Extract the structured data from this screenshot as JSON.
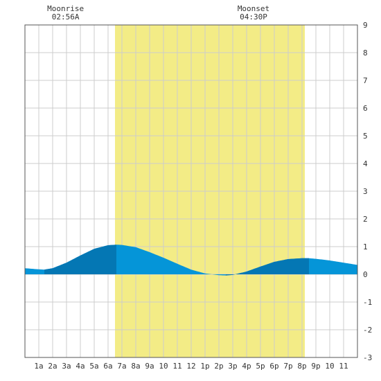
{
  "chart_data": {
    "type": "area",
    "title": "",
    "xlabel": "",
    "ylabel": "",
    "x_range_hours": [
      0,
      24
    ],
    "ylim": [
      -3,
      9
    ],
    "y_ticks": [
      -3,
      -2,
      -1,
      0,
      1,
      2,
      3,
      4,
      5,
      6,
      7,
      8,
      9
    ],
    "x_tick_hours": [
      1,
      2,
      3,
      4,
      5,
      6,
      7,
      8,
      9,
      10,
      11,
      12,
      13,
      14,
      15,
      16,
      17,
      18,
      19,
      20,
      21,
      22,
      23
    ],
    "x_tick_labels": [
      "1a",
      "2a",
      "3a",
      "4a",
      "5a",
      "6a",
      "7a",
      "8a",
      "9a",
      "10",
      "11",
      "12",
      "1p",
      "2p",
      "3p",
      "4p",
      "5p",
      "6p",
      "7p",
      "8p",
      "9p",
      "10",
      "11"
    ],
    "grid": true,
    "daylight": {
      "start_hour": 6.5,
      "end_hour": 20.2
    },
    "moon_events": [
      {
        "name": "Moonrise",
        "time": "02:56A",
        "hour": 2.93
      },
      {
        "name": "Moonset",
        "time": "04:30P",
        "hour": 16.5
      }
    ],
    "tide": {
      "x": [
        0,
        1,
        1.4,
        2,
        3,
        4,
        5,
        6,
        6.6,
        7,
        8,
        9,
        10,
        11,
        12,
        13,
        14,
        14.5,
        15,
        16,
        17,
        18,
        19,
        20,
        20.5,
        21,
        22,
        23,
        24
      ],
      "y": [
        0.22,
        0.18,
        0.17,
        0.22,
        0.42,
        0.68,
        0.92,
        1.05,
        1.07,
        1.06,
        0.98,
        0.8,
        0.6,
        0.38,
        0.17,
        0.03,
        -0.03,
        -0.04,
        -0.02,
        0.1,
        0.28,
        0.45,
        0.55,
        0.58,
        0.58,
        0.56,
        0.5,
        0.42,
        0.34
      ],
      "rising_segments": [
        [
          1.4,
          6.6
        ],
        [
          14.5,
          20.5
        ]
      ]
    },
    "colors": {
      "background": "#ffffff",
      "grid": "#cccccc",
      "axis": "#555555",
      "daylight": "#f3ec86",
      "tide_falling": "#0595d8",
      "tide_rising": "#0477b4"
    }
  }
}
